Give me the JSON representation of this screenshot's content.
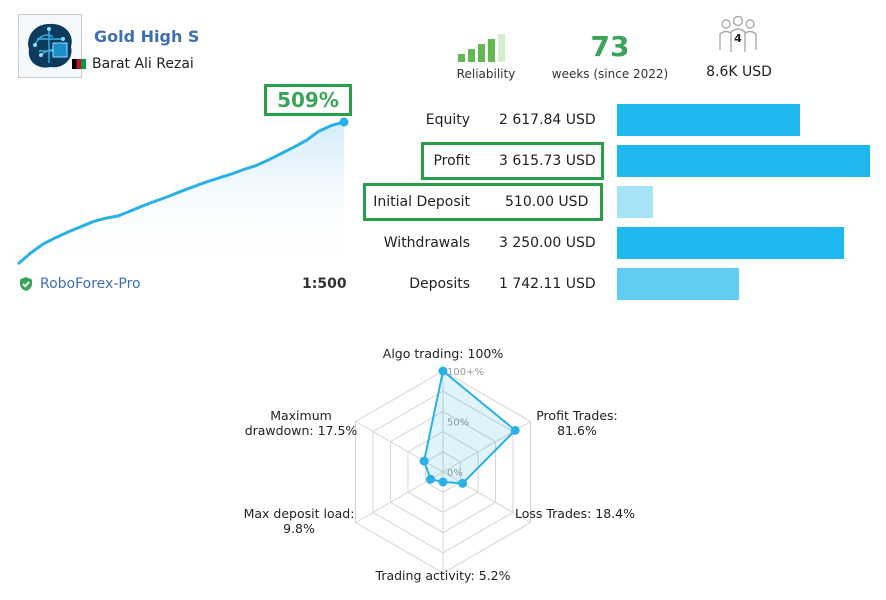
{
  "signal": {
    "name": "Gold High S",
    "author": "Barat Ali Rezai",
    "flag_icon": "afghanistan-flag-icon"
  },
  "stats": {
    "reliability_label": "Reliability",
    "reliability_level": 4,
    "reliability_max": 5,
    "weeks_value": "73",
    "weeks_label": "weeks (since 2022)",
    "subscribers_count": "4",
    "subscribers_funds": "8.6K USD"
  },
  "growth": {
    "value": "509%",
    "broker": "RoboForex-Pro",
    "leverage": "1:500",
    "curve": [
      0,
      19,
      35,
      46,
      56,
      65,
      74,
      80,
      84,
      93,
      102,
      110,
      118,
      127,
      135,
      143,
      150,
      157,
      165,
      172,
      182,
      193,
      204,
      216,
      232,
      242,
      248
    ]
  },
  "balance": [
    {
      "label": "Equity",
      "value": "2 617.84 USD",
      "amount": 2617.84,
      "color": "#1fb8ee",
      "highlight": false
    },
    {
      "label": "Profit",
      "value": "3 615.73 USD",
      "amount": 3615.73,
      "color": "#1fb8ee",
      "highlight": true
    },
    {
      "label": "Initial Deposit",
      "value": "510.00 USD",
      "amount": 510.0,
      "color": "#a8e2f7",
      "highlight": true
    },
    {
      "label": "Withdrawals",
      "value": "3 250.00 USD",
      "amount": 3250.0,
      "color": "#1fb8ee",
      "highlight": false
    },
    {
      "label": "Deposits",
      "value": "1 742.11 USD",
      "amount": 1742.11,
      "color": "#62cdf3",
      "highlight": false
    }
  ],
  "radar": {
    "axes": [
      {
        "lines": [
          "Algo trading: 100%"
        ],
        "value": 100
      },
      {
        "lines": [
          "Profit Trades:",
          "81.6%"
        ],
        "value": 81.6
      },
      {
        "lines": [
          "Loss Trades: 18.4%"
        ],
        "value": 18.4
      },
      {
        "lines": [
          "Trading activity: 5.2%"
        ],
        "value": 5.2
      },
      {
        "lines": [
          "Max deposit load:",
          "9.8%"
        ],
        "value": 9.8
      },
      {
        "lines": [
          "Maximum",
          "drawdown: 17.5%"
        ],
        "value": 17.5
      }
    ],
    "ticks": [
      "100+%",
      "50%",
      "0%"
    ]
  }
}
